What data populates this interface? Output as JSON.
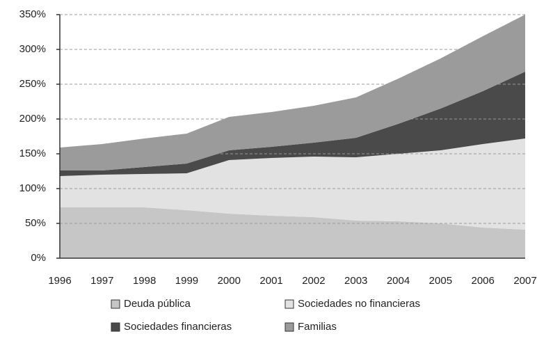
{
  "chart_data": {
    "type": "stacked_area",
    "categories": [
      "1996",
      "1997",
      "1998",
      "1999",
      "2000",
      "2001",
      "2002",
      "2003",
      "2004",
      "2005",
      "2006",
      "2007"
    ],
    "series": [
      {
        "name": "Deuda pública",
        "color": "#c6c6c6",
        "values": [
          73,
          73,
          73,
          69,
          64,
          61,
          59,
          54,
          53,
          50,
          44,
          41
        ]
      },
      {
        "name": "Sociedades no financieras",
        "color": "#e2e2e2",
        "values": [
          45,
          47,
          48,
          53,
          77,
          83,
          87,
          91,
          97,
          105,
          120,
          131
        ]
      },
      {
        "name": "Sociedades financieras",
        "color": "#4a4a4a",
        "values": [
          8,
          6,
          10,
          14,
          14,
          16,
          20,
          28,
          43,
          60,
          76,
          96
        ]
      },
      {
        "name": "Familias",
        "color": "#9b9b9b",
        "values": [
          33,
          38,
          41,
          43,
          48,
          50,
          53,
          58,
          65,
          72,
          79,
          82
        ]
      }
    ],
    "ylim": [
      0,
      350
    ],
    "yticks": [
      {
        "value": 0,
        "label": "0%"
      },
      {
        "value": 50,
        "label": "50%"
      },
      {
        "value": 100,
        "label": "100%"
      },
      {
        "value": 150,
        "label": "150%"
      },
      {
        "value": 200,
        "label": "200%"
      },
      {
        "value": 250,
        "label": "250%"
      },
      {
        "value": 300,
        "label": "300%"
      },
      {
        "value": 350,
        "label": "350%"
      }
    ],
    "grid": true,
    "legend": "bottom"
  }
}
